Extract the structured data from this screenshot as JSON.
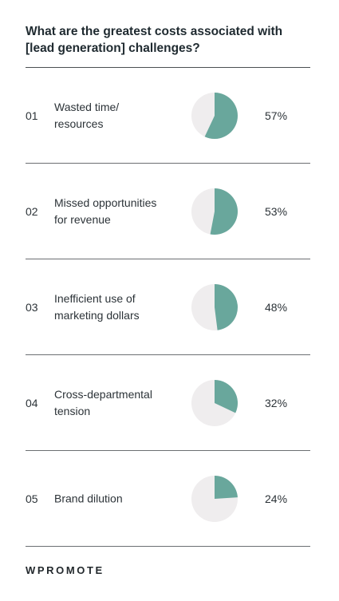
{
  "title": "What are the greatest costs associated with [lead generation] challenges?",
  "brand": "WPROMOTE",
  "colors": {
    "filled": "#69a79c",
    "empty": "#efedee"
  },
  "chart_data": {
    "type": "pie",
    "title": "What are the greatest costs associated with [lead generation] challenges?",
    "items": [
      {
        "number": "01",
        "label": "Wasted time/\nresources",
        "value": 57,
        "value_label": "57%"
      },
      {
        "number": "02",
        "label": "Missed opportunities\nfor revenue",
        "value": 53,
        "value_label": "53%"
      },
      {
        "number": "03",
        "label": "Inefficient use of\nmarketing dollars",
        "value": 48,
        "value_label": "48%"
      },
      {
        "number": "04",
        "label": "Cross-departmental\ntension",
        "value": 32,
        "value_label": "32%"
      },
      {
        "number": "05",
        "label": "Brand dilution",
        "value": 24,
        "value_label": "24%"
      }
    ]
  }
}
